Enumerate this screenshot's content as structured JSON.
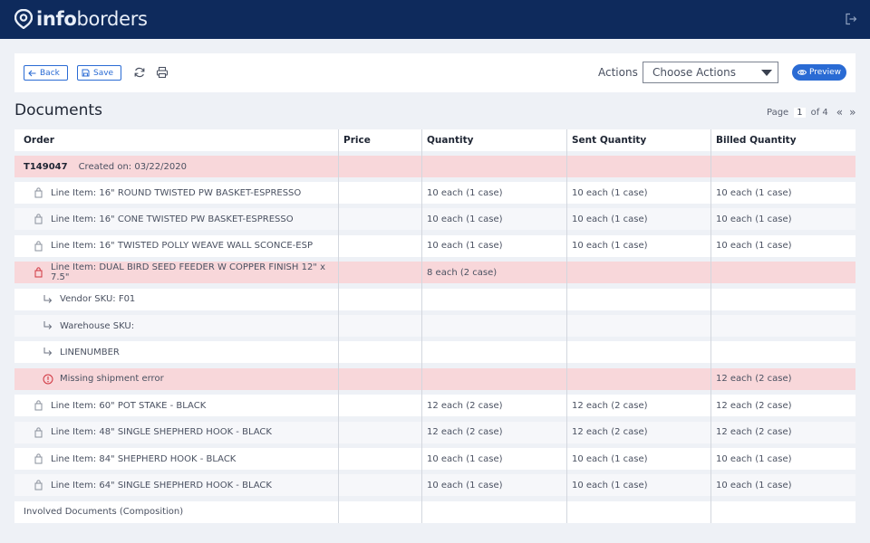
{
  "header": {
    "logo_part1": "info",
    "logo_part2": "borders",
    "logout_icon": "logout-icon"
  },
  "toolbar": {
    "back_label": "Back",
    "save_label": "Save",
    "refresh_icon": "refresh-icon",
    "print_icon": "print-icon",
    "actions_label": "Actions",
    "actions_select_value": "Choose Actions",
    "preview_label": "Preview"
  },
  "documents": {
    "title": "Documents",
    "pager": {
      "label": "Page",
      "current": "1",
      "of_label": "of 4"
    }
  },
  "table": {
    "columns": [
      "Order",
      "Price",
      "Quantity",
      "Sent Quantity",
      "Billed Quantity"
    ],
    "order": {
      "id": "T149047",
      "created": "Created on: 03/22/2020"
    },
    "rows": [
      {
        "type": "item",
        "label": "Line Item:  16\" ROUND TWISTED PW BASKET-ESPRESSO",
        "price": "",
        "qty": "10 each (1 case)",
        "sent": "10 each (1 case)",
        "billed": "10 each (1 case)"
      },
      {
        "type": "item",
        "label": "Line Item:  16\" CONE TWISTED PW BASKET-ESPRESSO",
        "price": "",
        "qty": "10 each (1 case)",
        "sent": "10 each (1 case)",
        "billed": "10 each (1 case)"
      },
      {
        "type": "item",
        "label": "Line Item:  16\" TWISTED POLLY WEAVE WALL SCONCE-ESP",
        "price": "",
        "qty": "10 each (1 case)",
        "sent": "10 each (1 case)",
        "billed": "10 each (1 case)"
      },
      {
        "type": "item-error",
        "label": "Line Item:  DUAL BIRD SEED FEEDER W COPPER FINISH 12\" x 7.5\"",
        "price": "",
        "qty": "8 each (2 case)",
        "sent": "",
        "billed": ""
      },
      {
        "type": "sub",
        "label": "Vendor SKU:   F01",
        "price": "",
        "qty": "",
        "sent": "",
        "billed": ""
      },
      {
        "type": "sub",
        "label": "Warehouse SKU:",
        "price": "",
        "qty": "",
        "sent": "",
        "billed": ""
      },
      {
        "type": "sub",
        "label": "LINENUMBER",
        "price": "",
        "qty": "",
        "sent": "",
        "billed": ""
      },
      {
        "type": "error",
        "label": "Missing shipment error",
        "price": "",
        "qty": "",
        "sent": "",
        "billed": "12 each (2 case)"
      },
      {
        "type": "item",
        "label": "Line Item:  60\" POT STAKE - BLACK",
        "price": "",
        "qty": "12 each (2 case)",
        "sent": "12 each (2 case)",
        "billed": "12 each (2 case)"
      },
      {
        "type": "item",
        "label": "Line Item:  48\" SINGLE SHEPHERD HOOK - BLACK",
        "price": "",
        "qty": "12 each (2 case)",
        "sent": "12 each (2 case)",
        "billed": "12 each (2 case)"
      },
      {
        "type": "item",
        "label": "Line Item:  84\" SHEPHERD HOOK - BLACK",
        "price": "",
        "qty": "10 each (1 case)",
        "sent": "10 each (1 case)",
        "billed": "10 each (1 case)"
      },
      {
        "type": "item",
        "label": "Line Item:  64\" SINGLE SHEPHERD HOOK - BLACK",
        "price": "",
        "qty": "10 each (1 case)",
        "sent": "10 each (1 case)",
        "billed": "10 each (1 case)"
      }
    ],
    "footer_label": "Involved Documents (Composition)"
  },
  "colors": {
    "header_bg": "#0e2a5c",
    "accent": "#2a6bd4",
    "error_row": "#f8d7da",
    "error_icon": "#d0343f"
  }
}
